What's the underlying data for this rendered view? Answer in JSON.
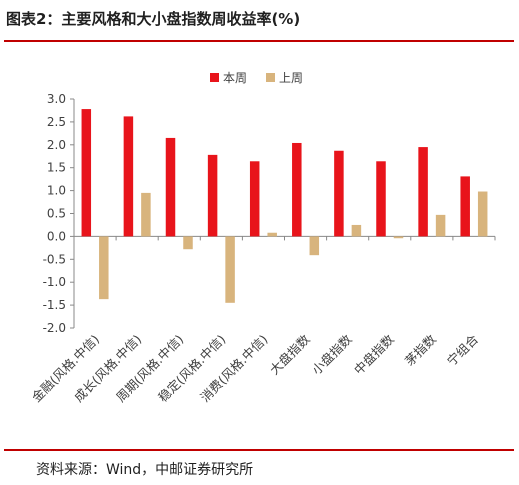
{
  "title": "图表2：主要风格和大小盘指数周收益率(%)",
  "source": "资料来源：Wind，中邮证券研究所",
  "colors": {
    "this_week": "#e8141b",
    "last_week": "#d8b47d",
    "rule": "#c00000"
  },
  "chart_data": {
    "type": "bar",
    "title": "",
    "xlabel": "",
    "ylabel": "",
    "categories": [
      "金融(风格.中信)",
      "成长(风格.中信)",
      "周期(风格.中信)",
      "稳定(风格.中信)",
      "消费(风格.中信)",
      "大盘指数",
      "小盘指数",
      "中盘指数",
      "茅指数",
      "宁组合"
    ],
    "series": [
      {
        "name": "本周",
        "values": [
          2.78,
          2.62,
          2.15,
          1.78,
          1.64,
          2.04,
          1.87,
          1.64,
          1.95,
          1.31
        ]
      },
      {
        "name": "上周",
        "values": [
          -1.37,
          0.95,
          -0.28,
          -1.45,
          0.08,
          -0.41,
          0.25,
          -0.04,
          0.47,
          0.98
        ]
      }
    ],
    "ylim": [
      -2.0,
      3.0
    ],
    "yticks": [
      "3.0",
      "2.5",
      "2.0",
      "1.5",
      "1.0",
      "0.5",
      "0.0",
      "-0.5",
      "-1.0",
      "-1.5",
      "-2.0"
    ],
    "grid": false,
    "legend_position": "top-center"
  }
}
